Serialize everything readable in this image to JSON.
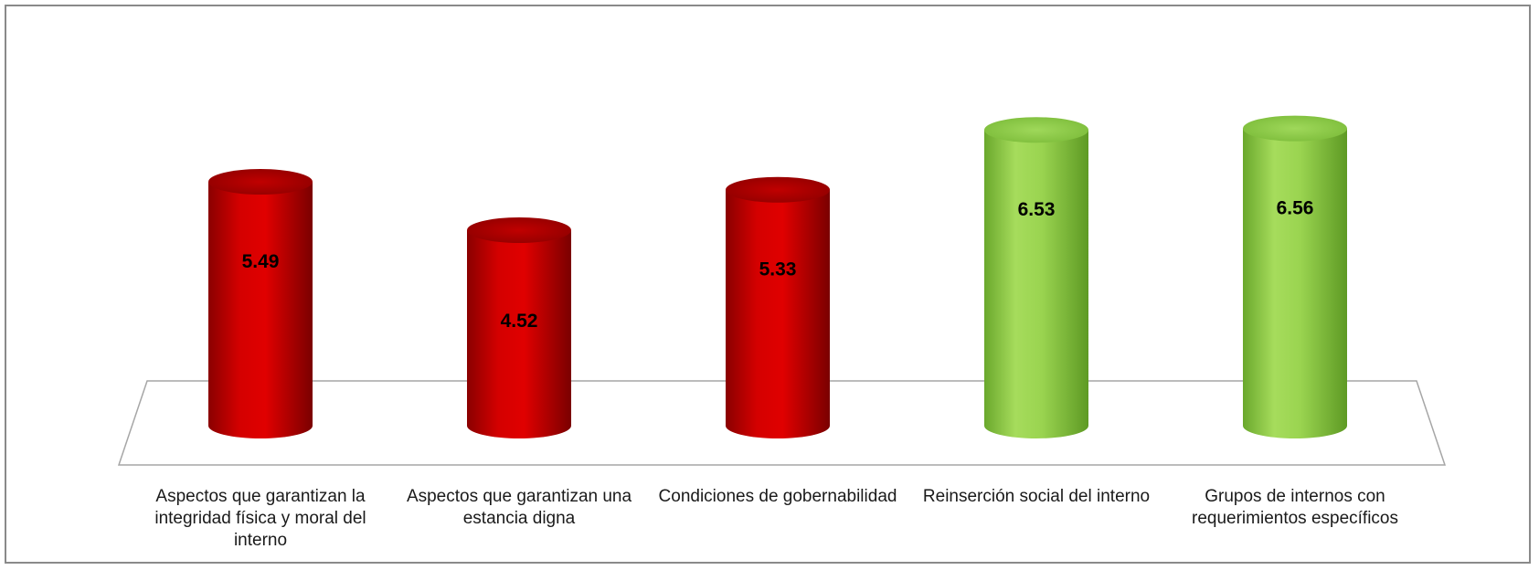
{
  "chart_data": {
    "type": "bar",
    "style": "3d-cylinder",
    "title": "",
    "xlabel": "",
    "ylabel": "",
    "categories": [
      "Aspectos que garantizan la integridad física y moral del interno",
      "Aspectos que garantizan una estancia digna",
      "Condiciones de gobernabilidad",
      "Reinserción social del interno",
      "Grupos de internos con requerimientos específicos"
    ],
    "values": [
      5.49,
      4.52,
      5.33,
      6.53,
      6.56
    ],
    "data_labels": [
      "5.49",
      "4.52",
      "5.33",
      "6.53",
      "6.56"
    ],
    "bar_colors": [
      "#c00000",
      "#c00000",
      "#c00000",
      "#92d050",
      "#92d050"
    ],
    "grid": false,
    "legend": "none"
  }
}
